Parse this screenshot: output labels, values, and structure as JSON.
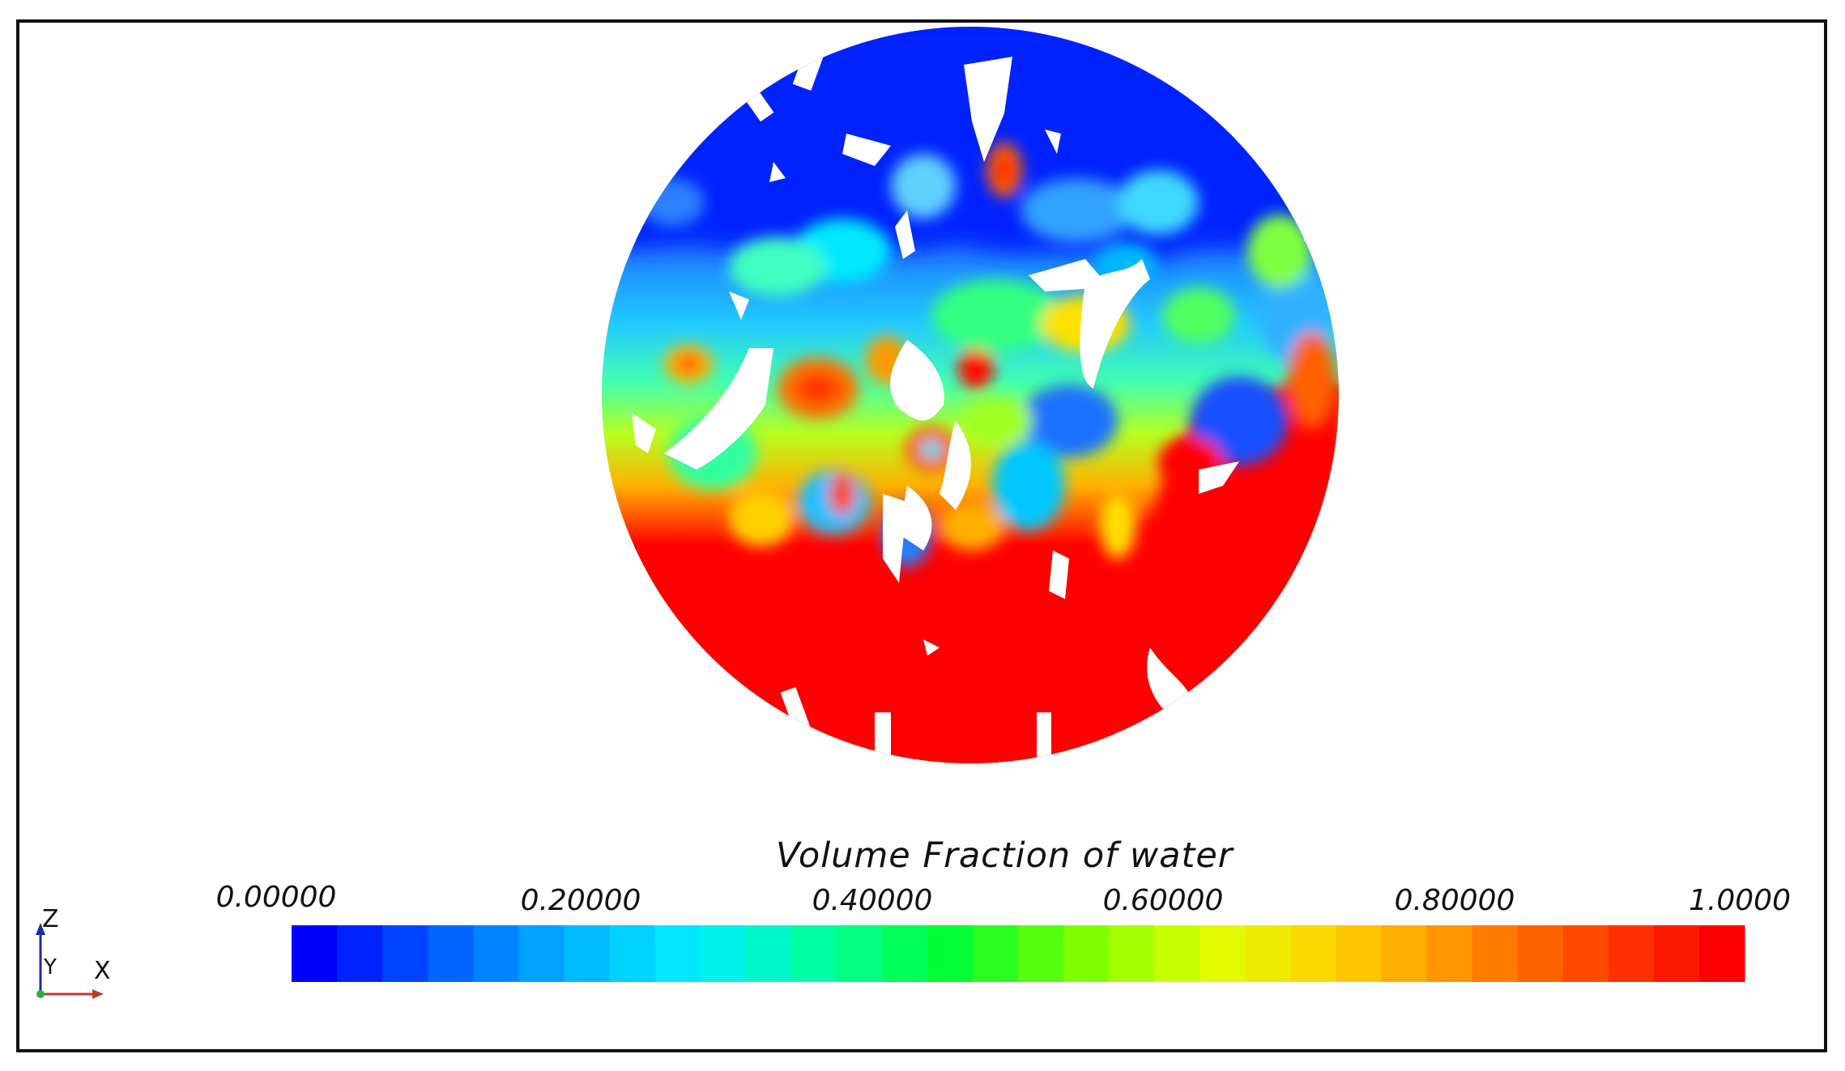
{
  "legend": {
    "title": "Volume Fraction of water",
    "ticks": [
      "0.00000",
      "0.20000",
      "0.40000",
      "0.60000",
      "0.80000",
      "1.0000"
    ],
    "range": [
      0,
      1
    ],
    "band_count": 32,
    "colormap": [
      "#0000ff",
      "#0060ff",
      "#00b4ff",
      "#00f0ff",
      "#00ff9a",
      "#00ff30",
      "#7dff00",
      "#e0ff00",
      "#ffd000",
      "#ff8c00",
      "#ff4400",
      "#ff0000"
    ]
  },
  "triad": {
    "z_label": "Z",
    "y_label": "Y",
    "x_label": "X"
  },
  "colors": {
    "low": "#0000ff",
    "mid": "#00ff30",
    "high": "#ff0000",
    "frame": "#111111"
  }
}
